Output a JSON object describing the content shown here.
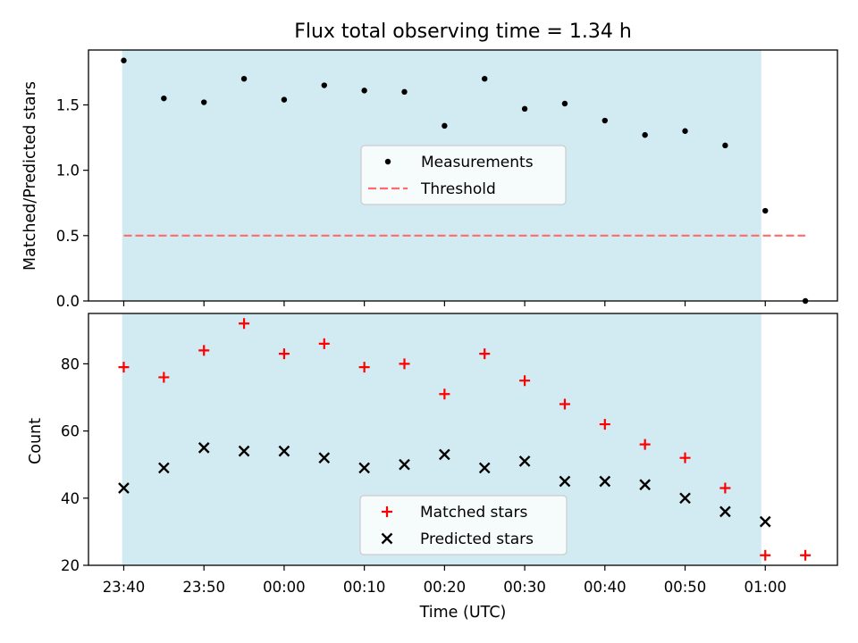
{
  "chart_data": {
    "title": "Flux total observing time = 1.34 h",
    "xlabel": "Time (UTC)",
    "x_tick_labels": [
      "23:40",
      "23:50",
      "00:00",
      "00:10",
      "00:20",
      "00:30",
      "00:40",
      "00:50",
      "01:00"
    ],
    "x_tick_minutes": [
      -20,
      -10,
      0,
      10,
      20,
      30,
      40,
      50,
      60
    ],
    "observing_window_minutes": [
      -20.2,
      59.5
    ],
    "colors": {
      "observing_window": "#add8e6",
      "measurement": "#000000",
      "threshold": "#ff6b6b",
      "matched": "#ff0000",
      "predicted": "#000000"
    },
    "panels": [
      {
        "type": "scatter",
        "ylabel": "Matched/Predicted stars",
        "ylim": [
          0,
          1.92
        ],
        "y_ticks": [
          "0.0",
          "0.5",
          "1.0",
          "1.5"
        ],
        "y_tick_values": [
          0,
          0.5,
          1.0,
          1.5
        ],
        "legend_placement": "center",
        "series": [
          {
            "name": "Measurements",
            "kind": "scatter",
            "marker": "dot",
            "x": [
              -20,
              -15,
              -10,
              -5,
              0,
              5,
              10,
              15,
              20,
              25,
              30,
              35,
              40,
              45,
              50,
              55,
              60,
              65
            ],
            "y": [
              1.84,
              1.55,
              1.52,
              1.7,
              1.54,
              1.65,
              1.61,
              1.6,
              1.34,
              1.7,
              1.47,
              1.51,
              1.38,
              1.27,
              1.3,
              1.19,
              0.69,
              0.0
            ]
          },
          {
            "name": "Threshold",
            "kind": "line",
            "style": "dashed",
            "x": [
              -20,
              65
            ],
            "y": [
              0.5,
              0.5
            ]
          }
        ]
      },
      {
        "type": "scatter",
        "ylabel": "Count",
        "ylim": [
          20,
          95
        ],
        "y_ticks": [
          "20",
          "40",
          "60",
          "80"
        ],
        "y_tick_values": [
          20,
          40,
          60,
          80
        ],
        "legend_placement": "lower center",
        "series": [
          {
            "name": "Matched stars",
            "kind": "scatter",
            "marker": "plus",
            "x": [
              -20,
              -15,
              -10,
              -5,
              0,
              5,
              10,
              15,
              20,
              25,
              30,
              35,
              40,
              45,
              50,
              55,
              60,
              65
            ],
            "y": [
              79,
              76,
              84,
              92,
              83,
              86,
              79,
              80,
              71,
              83,
              75,
              68,
              62,
              56,
              52,
              43,
              23,
              23
            ]
          },
          {
            "name": "Predicted stars",
            "kind": "scatter",
            "marker": "x",
            "x": [
              -20,
              -15,
              -10,
              -5,
              0,
              5,
              10,
              15,
              20,
              25,
              30,
              35,
              40,
              45,
              50,
              55,
              60
            ],
            "y": [
              43,
              49,
              55,
              54,
              54,
              52,
              49,
              50,
              53,
              49,
              51,
              45,
              45,
              44,
              40,
              36,
              33
            ]
          }
        ]
      }
    ]
  }
}
